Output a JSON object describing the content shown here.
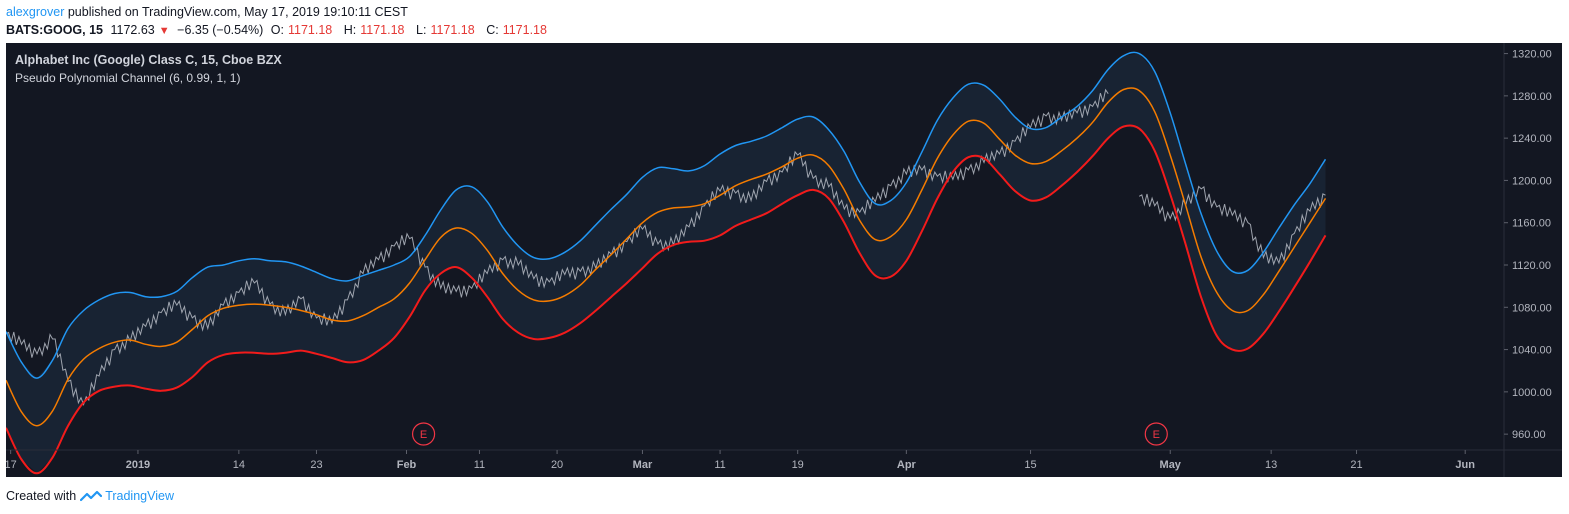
{
  "header": {
    "author": "alexgrover",
    "published_text": "published on TradingView.com, May 17, 2019 19:10:11 CEST",
    "symbol": "BATS:GOOG, 15",
    "last_price": "1172.63",
    "change_arrow": "▼",
    "change": "−6.35 (−0.54%)",
    "open_label": "O:",
    "open_value": "1171.18",
    "high_label": "H:",
    "high_value": "1171.18",
    "low_label": "L:",
    "low_value": "1171.18",
    "close_label": "C:",
    "close_value": "1171.18"
  },
  "legend": {
    "title": "Alphabet Inc (Google) Class C, 15, Cboe BZX",
    "indicator": "Pseudo Polynomial Channel (6, 0.99, 1, 1)"
  },
  "footer": {
    "created_with": "Created with",
    "brand": "TradingView"
  },
  "colors": {
    "background": "#131722",
    "band_fill": "#1a2535",
    "upper": "#2196f3",
    "middle": "#f57c00",
    "lower": "#f21b1b",
    "price": "#b7bcc6",
    "earnings": "#f23645",
    "axis_text": "#b2b5be"
  },
  "chart_data": {
    "type": "line",
    "ylim": [
      945,
      1330
    ],
    "y_ticks": [
      960,
      1000,
      1040,
      1080,
      1120,
      1160,
      1200,
      1240,
      1280,
      1320
    ],
    "y_tick_labels": [
      "960.00",
      "1000.00",
      "1040.00",
      "1080.00",
      "1120.00",
      "1160.00",
      "1200.00",
      "1240.00",
      "1280.00",
      "1320.00"
    ],
    "x_ticks": [
      0.3,
      8,
      13,
      18,
      23,
      28,
      33,
      38,
      43,
      48,
      53,
      58,
      63,
      68,
      73,
      78,
      83,
      88,
      93
    ],
    "x_tick_labels": [
      "17",
      "2019",
      "14",
      "23",
      "Feb",
      "11",
      "20",
      "Mar",
      "11",
      "19",
      "Apr",
      "15",
      "May",
      "13",
      "21",
      "Jun"
    ],
    "x_tick_positions": [
      0.3,
      8.5,
      15,
      20,
      25.8,
      30.5,
      35.5,
      41,
      46,
      51,
      58,
      66,
      75,
      81.5,
      87,
      94
    ],
    "earnings_events": [
      {
        "x": 26.9,
        "label": "E"
      },
      {
        "x": 74.1,
        "label": "E"
      }
    ],
    "series": [
      {
        "name": "upper",
        "x": [
          0,
          1,
          2,
          3,
          4,
          5,
          6,
          7,
          8,
          9,
          10,
          11,
          12,
          13,
          14,
          15,
          16,
          17,
          18,
          19,
          20,
          21,
          22,
          23,
          24,
          25,
          26,
          27,
          28,
          29,
          30,
          31,
          32,
          33,
          34,
          35,
          36,
          37,
          38,
          39,
          40,
          41,
          42,
          43,
          44,
          45,
          46,
          47,
          48,
          49,
          50,
          51,
          52,
          53,
          54,
          55,
          56,
          57,
          58,
          59,
          60,
          61,
          62,
          63,
          64,
          65,
          66,
          67,
          68,
          69,
          70,
          71,
          72,
          73,
          74,
          75,
          76,
          77,
          78,
          79,
          80,
          81,
          82,
          83,
          84,
          85
        ],
        "values": [
          1057,
          1028,
          1013,
          1030,
          1060,
          1077,
          1087,
          1093,
          1094,
          1090,
          1090,
          1095,
          1108,
          1118,
          1120,
          1124,
          1126,
          1124,
          1123,
          1119,
          1113,
          1107,
          1105,
          1110,
          1115,
          1120,
          1128,
          1148,
          1172,
          1191,
          1194,
          1180,
          1156,
          1138,
          1127,
          1126,
          1132,
          1143,
          1158,
          1173,
          1187,
          1203,
          1212,
          1211,
          1209,
          1214,
          1225,
          1233,
          1237,
          1242,
          1250,
          1258,
          1260,
          1248,
          1227,
          1198,
          1178,
          1181,
          1198,
          1227,
          1257,
          1278,
          1291,
          1290,
          1277,
          1260,
          1249,
          1250,
          1260,
          1270,
          1285,
          1305,
          1318,
          1320,
          1303,
          1264,
          1215,
          1168,
          1133,
          1114,
          1115,
          1132,
          1155,
          1177,
          1197,
          1220
        ]
      },
      {
        "name": "middle",
        "x": [
          0,
          1,
          2,
          3,
          4,
          5,
          6,
          7,
          8,
          9,
          10,
          11,
          12,
          13,
          14,
          15,
          16,
          17,
          18,
          19,
          20,
          21,
          22,
          23,
          24,
          25,
          26,
          27,
          28,
          29,
          30,
          31,
          32,
          33,
          34,
          35,
          36,
          37,
          38,
          39,
          40,
          41,
          42,
          43,
          44,
          45,
          46,
          47,
          48,
          49,
          50,
          51,
          52,
          53,
          54,
          55,
          56,
          57,
          58,
          59,
          60,
          61,
          62,
          63,
          64,
          65,
          66,
          67,
          68,
          69,
          70,
          71,
          72,
          73,
          74,
          75,
          76,
          77,
          78,
          79,
          80,
          81,
          82,
          83,
          84,
          85
        ],
        "values": [
          1011,
          981,
          968,
          982,
          1012,
          1031,
          1041,
          1047,
          1049,
          1045,
          1043,
          1047,
          1059,
          1072,
          1079,
          1082,
          1083,
          1082,
          1080,
          1077,
          1073,
          1068,
          1067,
          1072,
          1080,
          1088,
          1103,
          1125,
          1146,
          1155,
          1150,
          1134,
          1112,
          1096,
          1087,
          1086,
          1091,
          1101,
          1116,
          1130,
          1145,
          1160,
          1170,
          1174,
          1175,
          1178,
          1186,
          1195,
          1201,
          1206,
          1213,
          1221,
          1224,
          1214,
          1191,
          1162,
          1144,
          1147,
          1163,
          1191,
          1221,
          1243,
          1256,
          1254,
          1239,
          1224,
          1216,
          1218,
          1228,
          1240,
          1255,
          1274,
          1286,
          1285,
          1265,
          1224,
          1176,
          1127,
          1094,
          1077,
          1077,
          1092,
          1114,
          1137,
          1160,
          1183
        ]
      },
      {
        "name": "lower",
        "x": [
          0,
          1,
          2,
          3,
          4,
          5,
          6,
          7,
          8,
          9,
          10,
          11,
          12,
          13,
          14,
          15,
          16,
          17,
          18,
          19,
          20,
          21,
          22,
          23,
          24,
          25,
          26,
          27,
          28,
          29,
          30,
          31,
          32,
          33,
          34,
          35,
          36,
          37,
          38,
          39,
          40,
          41,
          42,
          43,
          44,
          45,
          46,
          47,
          48,
          49,
          50,
          51,
          52,
          53,
          54,
          55,
          56,
          57,
          58,
          59,
          60,
          61,
          62,
          63,
          64,
          65,
          66,
          67,
          68,
          69,
          70,
          71,
          72,
          73,
          74,
          75,
          76,
          77,
          78,
          79,
          80,
          81,
          82,
          83,
          84,
          85
        ],
        "values": [
          966,
          936,
          923,
          938,
          968,
          990,
          1001,
          1005,
          1006,
          1003,
          1001,
          1004,
          1014,
          1028,
          1035,
          1037,
          1037,
          1036,
          1037,
          1039,
          1036,
          1032,
          1028,
          1030,
          1039,
          1051,
          1071,
          1096,
          1112,
          1118,
          1108,
          1090,
          1069,
          1056,
          1050,
          1051,
          1056,
          1065,
          1077,
          1090,
          1103,
          1117,
          1131,
          1139,
          1142,
          1143,
          1148,
          1157,
          1163,
          1169,
          1178,
          1186,
          1191,
          1183,
          1160,
          1131,
          1110,
          1109,
          1124,
          1152,
          1183,
          1208,
          1222,
          1221,
          1206,
          1190,
          1181,
          1184,
          1195,
          1208,
          1223,
          1240,
          1251,
          1249,
          1228,
          1187,
          1139,
          1089,
          1053,
          1040,
          1041,
          1055,
          1076,
          1099,
          1123,
          1148
        ]
      },
      {
        "name": "price",
        "x": [
          0,
          1,
          2,
          3,
          4,
          5,
          6,
          7,
          8,
          9,
          10,
          11,
          12,
          13,
          14,
          15,
          16,
          17,
          18,
          19,
          20,
          21,
          22,
          23,
          24,
          25,
          26,
          27,
          28,
          29,
          30,
          31,
          32,
          33,
          34,
          35,
          36,
          37,
          38,
          39,
          40,
          41,
          42,
          43,
          44,
          45,
          46,
          47,
          48,
          49,
          50,
          51,
          52,
          53,
          54,
          55,
          56,
          57,
          58,
          59,
          60,
          61,
          62,
          63,
          64,
          65,
          66,
          67,
          68,
          69,
          70,
          71,
          72,
          73,
          74,
          75,
          76,
          77,
          78,
          79,
          80,
          81,
          82,
          83,
          84,
          85
        ],
        "values": [
          1055,
          1045,
          1036,
          1050,
          1010,
          988,
          1015,
          1040,
          1048,
          1062,
          1075,
          1082,
          1070,
          1060,
          1082,
          1094,
          1103,
          1083,
          1073,
          1088,
          1070,
          1065,
          1087,
          1112,
          1125,
          1138,
          1145,
          1118,
          1098,
          1095,
          1098,
          1112,
          1125,
          1120,
          1107,
          1104,
          1111,
          1114,
          1117,
          1130,
          1142,
          1154,
          1140,
          1139,
          1156,
          1176,
          1190,
          1188,
          1181,
          1199,
          1208,
          1224,
          1202,
          1194,
          1173,
          1170,
          1180,
          1195,
          1206,
          1210,
          1204,
          1201,
          1210,
          1217,
          1225,
          1237,
          1250,
          1261,
          1257,
          1264,
          1270,
          1282,
          null,
          1185,
          1176,
          1164,
          1177,
          1192,
          1175,
          1167,
          1160,
          1127,
          1122,
          1150,
          1171,
          1186
        ]
      }
    ]
  }
}
